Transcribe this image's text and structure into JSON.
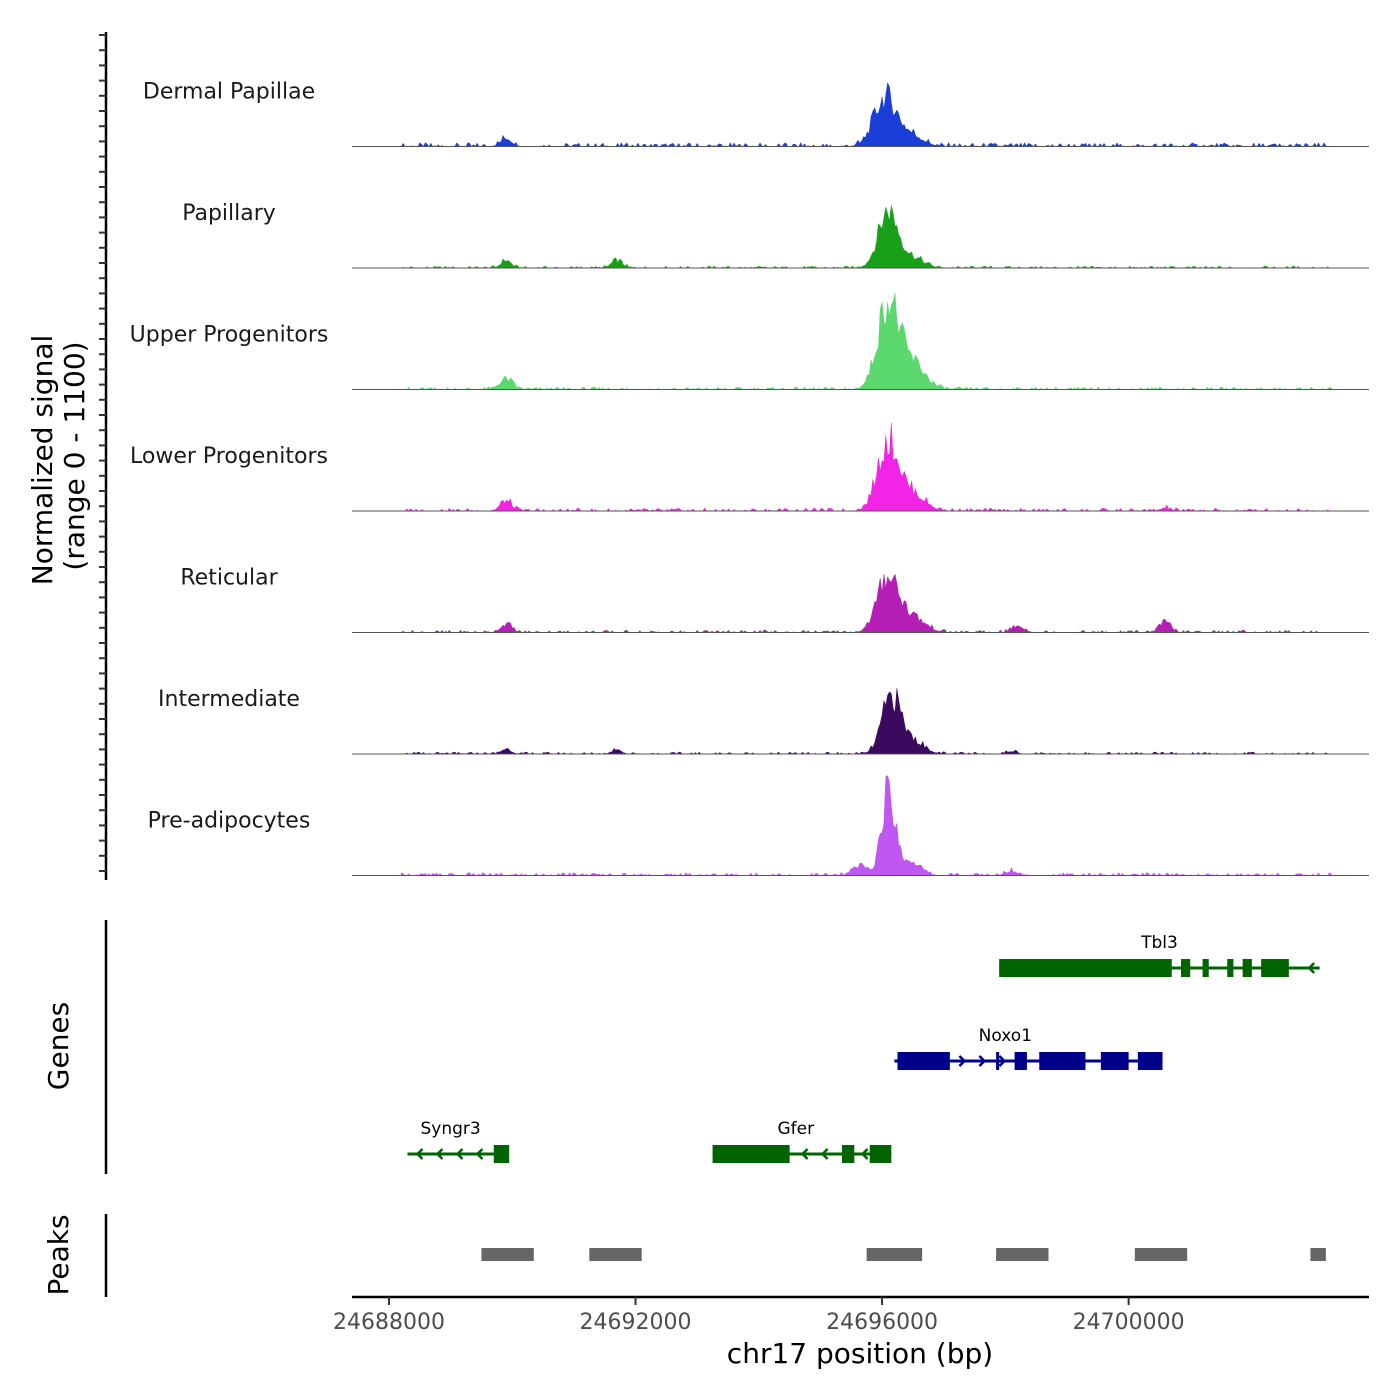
{
  "chart_data": {
    "type": "area",
    "title": "",
    "xlabel": "chr17 position (bp)",
    "ylabel_line1": "Normalized signal",
    "ylabel_line2": "(range 0 - 1100)",
    "signal_range": [
      0,
      1100
    ],
    "xlim": [
      24687400,
      24703900
    ],
    "x_ticks": [
      24688000,
      24692000,
      24696000,
      24700000
    ],
    "x_tick_labels": [
      "24688000",
      "24692000",
      "24696000",
      "24700000"
    ],
    "tracks": [
      {
        "name": "Dermal Papillae",
        "color": "#1b3fd6",
        "baseline": 80,
        "peaks": [
          [
            24689900,
            90,
            90
          ],
          [
            24696050,
            520,
            180
          ],
          [
            24696450,
            130,
            200
          ]
        ]
      },
      {
        "name": "Papillary",
        "color": "#19a019",
        "baseline": 40,
        "peaks": [
          [
            24689900,
            85,
            80
          ],
          [
            24691700,
            80,
            90
          ],
          [
            24696100,
            620,
            160
          ],
          [
            24696500,
            110,
            180
          ]
        ]
      },
      {
        "name": "Upper Progenitors",
        "color": "#5cd96e",
        "baseline": 50,
        "peaks": [
          [
            24689900,
            110,
            110
          ],
          [
            24696100,
            950,
            170
          ],
          [
            24696500,
            280,
            200
          ]
        ]
      },
      {
        "name": "Lower Progenitors",
        "color": "#f224e6",
        "baseline": 60,
        "peaks": [
          [
            24689900,
            110,
            90
          ],
          [
            24696100,
            750,
            170
          ],
          [
            24696500,
            180,
            200
          ],
          [
            24700600,
            30,
            90
          ]
        ]
      },
      {
        "name": "Reticular",
        "color": "#b41eb4",
        "baseline": 50,
        "peaks": [
          [
            24689900,
            90,
            90
          ],
          [
            24696100,
            620,
            170
          ],
          [
            24696500,
            160,
            200
          ],
          [
            24698200,
            70,
            100
          ],
          [
            24700600,
            110,
            90
          ]
        ]
      },
      {
        "name": "Intermediate",
        "color": "#3b0a5e",
        "baseline": 40,
        "peaks": [
          [
            24689900,
            55,
            80
          ],
          [
            24691700,
            55,
            70
          ],
          [
            24696150,
            620,
            150
          ],
          [
            24696500,
            140,
            180
          ],
          [
            24698100,
            30,
            80
          ]
        ]
      },
      {
        "name": "Pre-adipocytes",
        "color": "#c157f2",
        "baseline": 60,
        "peaks": [
          [
            24696100,
            900,
            110
          ],
          [
            24695650,
            100,
            120
          ],
          [
            24696450,
            160,
            160
          ],
          [
            24698100,
            50,
            100
          ]
        ]
      }
    ],
    "genes": {
      "axis_label": "Genes",
      "list": [
        {
          "name": "Tbl3",
          "color": "#006400",
          "row": 1,
          "strand": "-",
          "start": 24697900,
          "end": 24703100,
          "label_at": 24700500,
          "exons": [
            [
              24697900,
              24700700
            ],
            [
              24700850,
              24701000
            ],
            [
              24701200,
              24701300
            ],
            [
              24701600,
              24701700
            ],
            [
              24701850,
              24702000
            ],
            [
              24702150,
              24702600
            ]
          ]
        },
        {
          "name": "Noxo1",
          "color": "#00008b",
          "row": 2,
          "strand": "+",
          "start": 24696200,
          "end": 24700550,
          "label_at": 24698000,
          "exons": [
            [
              24696250,
              24697100
            ],
            [
              24697850,
              24697900
            ],
            [
              24698150,
              24698350
            ],
            [
              24698550,
              24699300
            ],
            [
              24699550,
              24700000
            ],
            [
              24700150,
              24700550
            ]
          ]
        },
        {
          "name": "Syngr3",
          "color": "#006400",
          "row": 3,
          "strand": "-",
          "start": 24688300,
          "end": 24689950,
          "label_at": 24689000,
          "exons": [
            [
              24689700,
              24689950
            ]
          ]
        },
        {
          "name": "Gfer",
          "color": "#006400",
          "row": 3,
          "strand": "-",
          "start": 24693250,
          "end": 24696150,
          "label_at": 24694600,
          "exons": [
            [
              24693250,
              24694500
            ],
            [
              24695350,
              24695550
            ],
            [
              24695800,
              24696150
            ]
          ]
        }
      ]
    },
    "peaks": {
      "axis_label": "Peaks",
      "color": "#666666",
      "regions": [
        [
          24689500,
          24690350
        ],
        [
          24691250,
          24692100
        ],
        [
          24695750,
          24696650
        ],
        [
          24697850,
          24698700
        ],
        [
          24700100,
          24700950
        ],
        [
          24702950,
          24703200
        ]
      ]
    }
  }
}
